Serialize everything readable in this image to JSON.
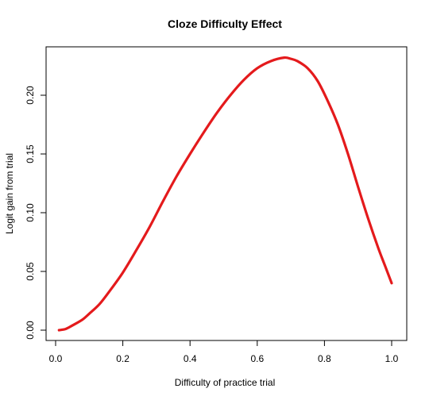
{
  "chart_data": {
    "type": "line",
    "title": "Cloze Difficulty Effect",
    "xlabel": "Difficulty of practice trial",
    "ylabel": "Logit gain from trial",
    "xlim": [
      0,
      1
    ],
    "ylim": [
      -0.01,
      0.235
    ],
    "xticks": [
      "0.0",
      "0.2",
      "0.4",
      "0.6",
      "0.8",
      "1.0"
    ],
    "yticks": [
      "0.00",
      "0.05",
      "0.10",
      "0.15",
      "0.20"
    ],
    "grid": false,
    "legend": "none",
    "series": [
      {
        "color": "#e41a1c",
        "x": [
          0.01,
          0.03,
          0.05,
          0.08,
          0.1,
          0.13,
          0.16,
          0.2,
          0.24,
          0.28,
          0.32,
          0.36,
          0.4,
          0.44,
          0.48,
          0.52,
          0.56,
          0.6,
          0.64,
          0.68,
          0.7,
          0.72,
          0.75,
          0.78,
          0.81,
          0.84,
          0.87,
          0.9,
          0.93,
          0.96,
          0.98,
          1.0
        ],
        "y": [
          0.0,
          0.001,
          0.004,
          0.009,
          0.014,
          0.022,
          0.033,
          0.049,
          0.068,
          0.088,
          0.11,
          0.131,
          0.15,
          0.168,
          0.185,
          0.2,
          0.213,
          0.223,
          0.229,
          0.232,
          0.231,
          0.229,
          0.223,
          0.212,
          0.195,
          0.175,
          0.15,
          0.122,
          0.095,
          0.07,
          0.055,
          0.04
        ]
      }
    ]
  }
}
